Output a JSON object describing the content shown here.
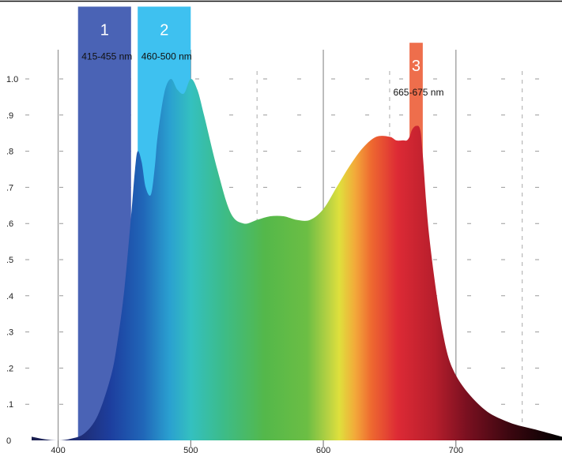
{
  "chart_data": {
    "type": "area",
    "title": "",
    "xlabel": "",
    "ylabel": "",
    "xlim": [
      380,
      780
    ],
    "ylim": [
      0,
      1.0
    ],
    "x_ticks": [
      {
        "value": 400,
        "label": "400"
      },
      {
        "value": 500,
        "label": "500"
      },
      {
        "value": 600,
        "label": "600"
      },
      {
        "value": 700,
        "label": "700"
      }
    ],
    "y_ticks": [
      {
        "value": 0,
        "label": "0"
      },
      {
        "value": 0.1,
        "label": ".1"
      },
      {
        "value": 0.2,
        "label": ".2"
      },
      {
        "value": 0.3,
        "label": ".3"
      },
      {
        "value": 0.4,
        "label": ".4"
      },
      {
        "value": 0.5,
        "label": ".5"
      },
      {
        "value": 0.6,
        "label": ".6"
      },
      {
        "value": 0.7,
        "label": ".7"
      },
      {
        "value": 0.8,
        "label": ".8"
      },
      {
        "value": 0.9,
        "label": ".9"
      },
      {
        "value": 1.0,
        "label": "1.0"
      }
    ],
    "grid": {
      "solid_every_nm": 100,
      "dashed_every_nm": 50,
      "horizontal": "short dashes"
    },
    "fill": "visible-spectrum gradient",
    "series": [
      {
        "x": [
          380,
          390,
          400,
          410,
          420,
          430,
          440,
          445,
          450,
          455,
          458,
          460,
          463,
          466,
          470,
          473,
          475,
          480,
          485,
          490,
          495,
          500,
          505,
          510,
          520,
          530,
          540,
          550,
          560,
          570,
          580,
          590,
          600,
          610,
          620,
          630,
          640,
          650,
          655,
          660,
          663,
          665,
          667,
          670,
          673,
          675,
          680,
          690,
          700,
          720,
          740,
          760,
          780
        ],
        "y": [
          0.01,
          0.003,
          0.0,
          0.005,
          0.02,
          0.07,
          0.18,
          0.28,
          0.42,
          0.62,
          0.75,
          0.8,
          0.77,
          0.7,
          0.68,
          0.76,
          0.84,
          0.96,
          1.0,
          0.97,
          0.96,
          1.0,
          0.97,
          0.9,
          0.75,
          0.63,
          0.6,
          0.61,
          0.62,
          0.62,
          0.61,
          0.61,
          0.64,
          0.7,
          0.76,
          0.81,
          0.84,
          0.84,
          0.83,
          0.83,
          0.83,
          0.84,
          0.86,
          0.87,
          0.86,
          0.79,
          0.56,
          0.3,
          0.18,
          0.09,
          0.05,
          0.03,
          0.01
        ]
      }
    ],
    "bands": [
      {
        "number": "1",
        "range_label": "415-455 nm",
        "x_start": 415,
        "x_end": 455,
        "y_top": 1.2,
        "color": "#4a63b5"
      },
      {
        "number": "2",
        "range_label": "460-500 nm",
        "x_start": 460,
        "x_end": 500,
        "y_top": 1.2,
        "color": "#3ec1f0"
      },
      {
        "number": "3",
        "range_label": "665-675 nm",
        "x_start": 665,
        "x_end": 675,
        "y_top": 1.1,
        "color": "#ee6e4c"
      }
    ]
  }
}
